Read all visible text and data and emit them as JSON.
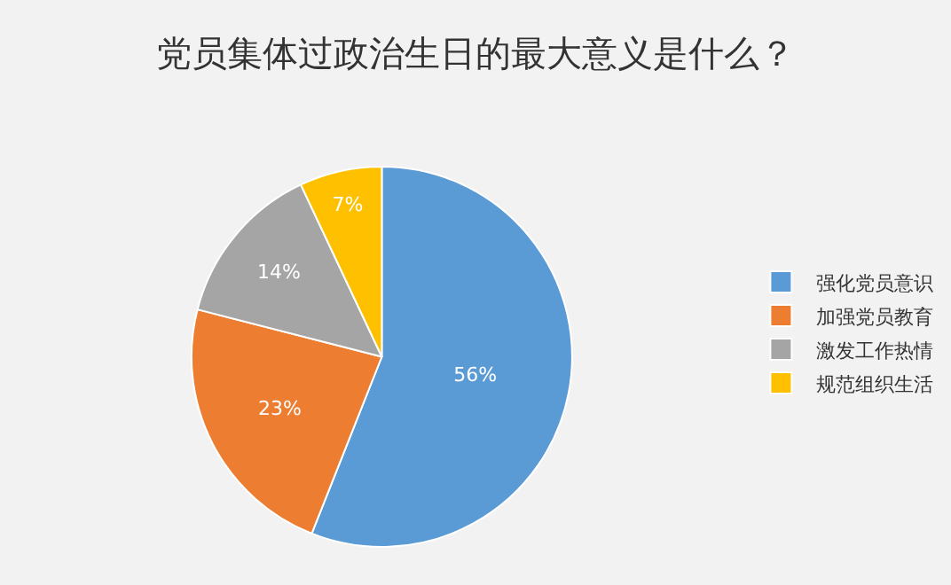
{
  "chart_data": {
    "type": "pie",
    "title": "党员集体过政治生日的最大意义是什么？",
    "categories": [
      "强化党员意识",
      "加强党员教育",
      "激发工作热情",
      "规范组织生活"
    ],
    "values": [
      56,
      23,
      14,
      7
    ],
    "colors": [
      "#5b9bd5",
      "#ed7d31",
      "#a5a5a5",
      "#ffc000"
    ],
    "value_labels": [
      "56%",
      "23%",
      "14%",
      "7%"
    ],
    "legend": "right"
  }
}
